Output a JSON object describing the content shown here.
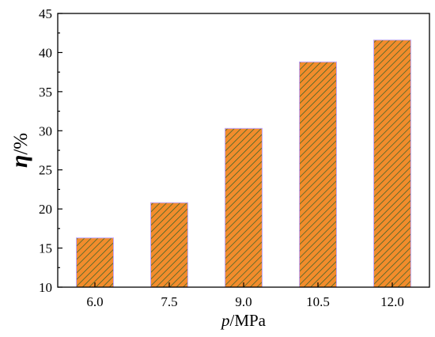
{
  "chart_data": {
    "type": "bar",
    "categories": [
      "6.0",
      "7.5",
      "9.0",
      "10.5",
      "12.0"
    ],
    "values": [
      16.3,
      20.8,
      30.3,
      38.8,
      41.6
    ],
    "xlabel_italic": "p",
    "xlabel_rest": "/MPa",
    "ylabel_italic": "η",
    "ylabel_rest": "/%",
    "ylim": [
      10,
      45
    ],
    "yticks": [
      "10",
      "15",
      "20",
      "25",
      "30",
      "35",
      "40",
      "45"
    ],
    "grid": false,
    "legend": "none",
    "bar_fill": "#f28c2c",
    "bar_hatch": "#2f5f2a",
    "bar_edge": "#c0a7ff"
  }
}
